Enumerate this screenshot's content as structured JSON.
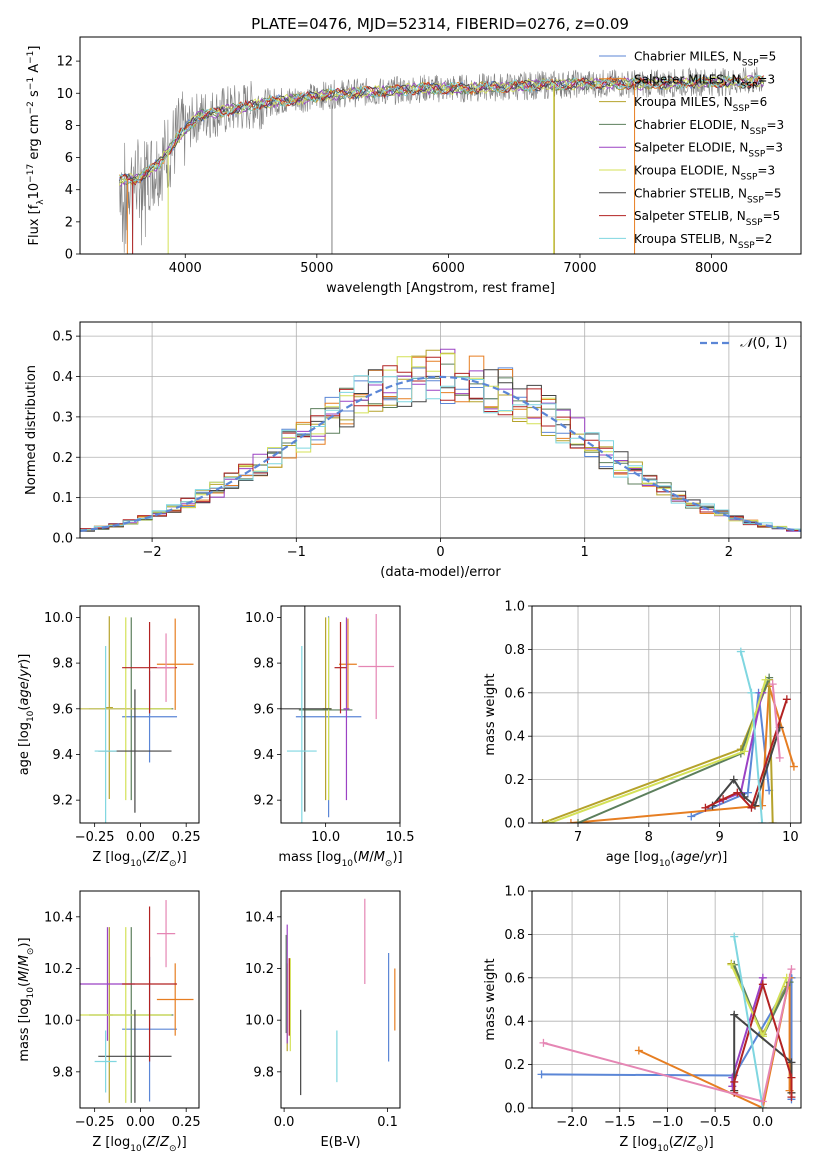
{
  "figure": {
    "title": "PLATE=0476, MJD=52314, FIBERID=0276, z=0.09"
  },
  "chart_data": [
    {
      "id": "spectrum",
      "type": "line",
      "title": "PLATE=0476, MJD=52314, FIBERID=0276, z=0.09",
      "xlabel": "wavelength [Angstrom, rest frame]",
      "ylabel": "Flux [f_λ10^-17 erg cm^-2 s^-1 A^-1]",
      "xlim": [
        3200,
        8680
      ],
      "ylim": [
        0,
        13.5
      ],
      "xticks": [
        4000,
        5000,
        6000,
        7000,
        8000
      ],
      "yticks": [
        0,
        2,
        4,
        6,
        8,
        10,
        12
      ],
      "grid": false,
      "legend_position": "top-right",
      "observed_color": "#808080",
      "continuum": {
        "x": [
          3500,
          3650,
          3800,
          3950,
          4100,
          4300,
          4600,
          4900,
          5200,
          5500,
          5800,
          6100,
          6400,
          6700,
          7000,
          7300,
          7600,
          7900,
          8200,
          8400
        ],
        "y": [
          4.6,
          4.7,
          5.6,
          7.3,
          8.6,
          8.9,
          9.4,
          9.7,
          10.0,
          10.1,
          10.3,
          10.3,
          10.4,
          10.5,
          10.6,
          10.6,
          10.6,
          10.7,
          10.7,
          10.8
        ]
      },
      "series": [
        {
          "name": "Chabrier MILES, N_SSP=5",
          "color": "#5b86d6"
        },
        {
          "name": "Salpeter MILES, N_SSP=3",
          "color": "#e67e22"
        },
        {
          "name": "Kroupa MILES, N_SSP=6",
          "color": "#b5a22b"
        },
        {
          "name": "Chabrier ELODIE, N_SSP=3",
          "color": "#5c7f5c"
        },
        {
          "name": "Salpeter ELODIE, N_SSP=3",
          "color": "#9b42c4"
        },
        {
          "name": "Kroupa ELODIE, N_SSP=3",
          "color": "#d4e157"
        },
        {
          "name": "Chabrier STELIB, N_SSP=5",
          "color": "#444444"
        },
        {
          "name": "Salpeter STELIB, N_SSP=5",
          "color": "#b22222"
        },
        {
          "name": "Kroupa STELIB, N_SSP=2",
          "color": "#7fd6e0"
        }
      ]
    },
    {
      "id": "residuals",
      "type": "bar",
      "xlabel": "(data-model)/error",
      "ylabel": "Normed distribution",
      "xlim": [
        -2.5,
        2.5
      ],
      "ylim": [
        0,
        0.535
      ],
      "xticks": [
        -2,
        -1,
        0,
        1,
        2
      ],
      "yticks": [
        0.0,
        0.1,
        0.2,
        0.3,
        0.4,
        0.5
      ],
      "grid": true,
      "legend_position": "top-right",
      "reference": {
        "name": "N(0,1)",
        "color": "#5b86d6"
      },
      "bin_width": 0.1,
      "bin_centers_from": -2.45
    },
    {
      "id": "age-vs-Z",
      "type": "scatter",
      "xlabel": "Z [log10(Z/Z⊙)]",
      "ylabel": "age [log10(age/yr)]",
      "xlim": [
        -0.33,
        0.32
      ],
      "ylim": [
        9.1,
        10.05
      ],
      "xticks": [
        -0.25,
        0.0,
        0.25
      ],
      "yticks": [
        9.2,
        9.4,
        9.6,
        9.8,
        10.0
      ],
      "points": [
        {
          "x": 0.05,
          "y": 9.565,
          "xerr": 0.15,
          "yerr": 0.2,
          "color": "#5b86d6"
        },
        {
          "x": 0.19,
          "y": 9.795,
          "xerr": 0.1,
          "yerr": 0.2,
          "color": "#e67e22"
        },
        {
          "x": -0.17,
          "y": 9.605,
          "xerr": 0.02,
          "yerr": 0.4,
          "color": "#b5a22b"
        },
        {
          "x": -0.05,
          "y": 9.6,
          "xerr": 0.23,
          "yerr": 0.4,
          "color": "#5c7f5c"
        },
        {
          "x": -0.18,
          "y": 9.6,
          "xerr": 0.15,
          "yerr": 0.0,
          "color": "#9b42c4"
        },
        {
          "x": -0.08,
          "y": 9.6,
          "xerr": 0.25,
          "yerr": 0.4,
          "color": "#d4e157"
        },
        {
          "x": -0.03,
          "y": 9.415,
          "xerr": 0.2,
          "yerr": 0.27,
          "color": "#444444"
        },
        {
          "x": 0.05,
          "y": 9.78,
          "xerr": 0.15,
          "yerr": 0.2,
          "color": "#b22222"
        },
        {
          "x": -0.19,
          "y": 9.415,
          "xerr": 0.06,
          "yerr": 0.46,
          "color": "#7fd6e0"
        },
        {
          "x": 0.14,
          "y": 9.78,
          "xerr": 0.05,
          "yerr": 0.15,
          "color": "#e586b4"
        }
      ]
    },
    {
      "id": "age-vs-mass",
      "type": "scatter",
      "xlabel": "mass [log10(M/M⊙)]",
      "ylabel": "",
      "xlim": [
        9.7,
        10.5
      ],
      "ylim": [
        9.1,
        10.05
      ],
      "xticks": [
        10.0,
        10.5
      ],
      "yticks": [
        9.2,
        9.4,
        9.6,
        9.8,
        10.0
      ],
      "points": [
        {
          "x": 10.02,
          "y": 9.565,
          "xerr": 0.22,
          "yerr": 0.44,
          "color": "#5b86d6"
        },
        {
          "x": 10.15,
          "y": 9.795,
          "xerr": 0.06,
          "yerr": 0.2,
          "color": "#e67e22"
        },
        {
          "x": 10.0,
          "y": 9.6,
          "xerr": 0.02,
          "yerr": 0.4,
          "color": "#b5a22b"
        },
        {
          "x": 10.0,
          "y": 9.595,
          "xerr": 0.18,
          "yerr": 0.0,
          "color": "#5c7f5c"
        },
        {
          "x": 10.14,
          "y": 9.6,
          "xerr": 0.02,
          "yerr": 0.4,
          "color": "#9b42c4"
        },
        {
          "x": 10.02,
          "y": 9.6,
          "xerr": 0.02,
          "yerr": 0.4,
          "color": "#d4e157"
        },
        {
          "x": 9.86,
          "y": 9.6,
          "xerr": 0.18,
          "yerr": 0.45,
          "color": "#444444"
        },
        {
          "x": 10.1,
          "y": 9.78,
          "xerr": 0.04,
          "yerr": 0.2,
          "color": "#b22222"
        },
        {
          "x": 9.84,
          "y": 9.415,
          "xerr": 0.1,
          "yerr": 0.46,
          "color": "#7fd6e0"
        },
        {
          "x": 10.34,
          "y": 9.785,
          "xerr": 0.12,
          "yerr": 0.23,
          "color": "#e586b4"
        }
      ]
    },
    {
      "id": "weights-vs-age",
      "type": "line",
      "xlabel": "age [log10(age/yr)]",
      "ylabel": "mass weight",
      "xlim": [
        6.35,
        10.15
      ],
      "ylim": [
        0.0,
        1.0
      ],
      "xticks": [
        7,
        8,
        9,
        10
      ],
      "yticks": [
        0.0,
        0.2,
        0.4,
        0.6,
        0.8,
        1.0
      ],
      "grid": true,
      "series": [
        {
          "color": "#5b86d6",
          "x": [
            8.6,
            9.4,
            9.55,
            9.7
          ],
          "y": [
            0.03,
            0.14,
            0.6,
            0.15
          ]
        },
        {
          "color": "#e67e22",
          "x": [
            6.9,
            9.6,
            9.7,
            10.05
          ],
          "y": [
            0.0,
            0.08,
            0.63,
            0.26
          ]
        },
        {
          "color": "#b5a22b",
          "x": [
            6.5,
            9.3,
            9.7,
            9.75
          ],
          "y": [
            0.0,
            0.34,
            0.66,
            0.0
          ]
        },
        {
          "color": "#5c7f5c",
          "x": [
            7.0,
            9.3,
            9.7
          ],
          "y": [
            0.0,
            0.32,
            0.67
          ]
        },
        {
          "color": "#9b42c4",
          "x": [
            9.0,
            9.3,
            9.6
          ],
          "y": [
            0.1,
            0.14,
            0.6
          ]
        },
        {
          "color": "#d4e157",
          "x": [
            6.6,
            9.35,
            9.65
          ],
          "y": [
            0.0,
            0.33,
            0.66
          ]
        },
        {
          "color": "#444444",
          "x": [
            8.9,
            9.2,
            9.35,
            9.5,
            9.85
          ],
          "y": [
            0.08,
            0.2,
            0.12,
            0.08,
            0.44
          ]
        },
        {
          "color": "#b22222",
          "x": [
            8.8,
            9.05,
            9.25,
            9.45,
            9.95
          ],
          "y": [
            0.07,
            0.11,
            0.14,
            0.07,
            0.57
          ]
        },
        {
          "color": "#7fd6e0",
          "x": [
            9.3,
            9.45,
            9.6
          ],
          "y": [
            0.79,
            0.6,
            0.0
          ]
        },
        {
          "color": "#e586b4",
          "x": [
            9.75,
            9.85
          ],
          "y": [
            0.64,
            0.3
          ]
        }
      ]
    },
    {
      "id": "mass-vs-Z",
      "type": "scatter",
      "xlabel": "Z [log10(Z/Z⊙)]",
      "ylabel": "mass [log10(M/M⊙)]",
      "xlim": [
        -0.33,
        0.32
      ],
      "ylim": [
        9.66,
        10.5
      ],
      "xticks": [
        -0.25,
        0.0,
        0.25
      ],
      "yticks": [
        9.8,
        10.0,
        10.2,
        10.4
      ],
      "points": [
        {
          "x": 0.05,
          "y": 9.965,
          "xerr": 0.15,
          "yerr": 0.28,
          "color": "#5b86d6"
        },
        {
          "x": 0.19,
          "y": 10.08,
          "xerr": 0.1,
          "yerr": 0.14,
          "color": "#e67e22"
        },
        {
          "x": -0.17,
          "y": 10.02,
          "xerr": 0.02,
          "yerr": 0.34,
          "color": "#b5a22b"
        },
        {
          "x": -0.05,
          "y": 10.02,
          "xerr": 0.23,
          "yerr": 0.34,
          "color": "#5c7f5c"
        },
        {
          "x": -0.18,
          "y": 10.14,
          "xerr": 0.15,
          "yerr": 0.22,
          "color": "#9b42c4"
        },
        {
          "x": -0.08,
          "y": 10.02,
          "xerr": 0.25,
          "yerr": 0.34,
          "color": "#d4e157"
        },
        {
          "x": -0.03,
          "y": 9.86,
          "xerr": 0.2,
          "yerr": 0.18,
          "color": "#444444"
        },
        {
          "x": 0.05,
          "y": 10.14,
          "xerr": 0.15,
          "yerr": 0.3,
          "color": "#b22222"
        },
        {
          "x": -0.19,
          "y": 9.84,
          "xerr": 0.06,
          "yerr": 0.12,
          "color": "#7fd6e0"
        },
        {
          "x": 0.14,
          "y": 10.335,
          "xerr": 0.05,
          "yerr": 0.13,
          "color": "#e586b4"
        }
      ]
    },
    {
      "id": "mass-vs-EBV",
      "type": "scatter",
      "xlabel": "E(B-V)",
      "ylabel": "",
      "xlim": [
        -0.003,
        0.112
      ],
      "ylim": [
        9.66,
        10.5
      ],
      "xticks": [
        0.0,
        0.1
      ],
      "yticks": [
        9.8,
        10.0,
        10.2,
        10.4
      ],
      "segments": [
        {
          "x": 0.101,
          "y0": 9.84,
          "y1": 10.26,
          "color": "#5b86d6"
        },
        {
          "x": 0.107,
          "y0": 9.96,
          "y1": 10.2,
          "color": "#e67e22"
        },
        {
          "x": 0.003,
          "y0": 9.88,
          "y1": 10.22,
          "color": "#b5a22b"
        },
        {
          "x": 0.002,
          "y0": 9.95,
          "y1": 10.33,
          "color": "#5c7f5c"
        },
        {
          "x": 0.003,
          "y0": 9.91,
          "y1": 10.37,
          "color": "#9b42c4"
        },
        {
          "x": 0.006,
          "y0": 9.88,
          "y1": 10.24,
          "color": "#d4e157"
        },
        {
          "x": 0.016,
          "y0": 9.71,
          "y1": 10.04,
          "color": "#444444"
        },
        {
          "x": 0.005,
          "y0": 9.94,
          "y1": 10.24,
          "color": "#b22222"
        },
        {
          "x": 0.051,
          "y0": 9.76,
          "y1": 9.96,
          "color": "#7fd6e0"
        },
        {
          "x": 0.078,
          "y0": 10.14,
          "y1": 10.47,
          "color": "#e586b4"
        }
      ]
    },
    {
      "id": "weights-vs-Z",
      "type": "line",
      "xlabel": "Z [log10(Z/Z⊙)]",
      "ylabel": "mass weight",
      "xlim": [
        -2.42,
        0.4
      ],
      "ylim": [
        0.0,
        1.0
      ],
      "xticks": [
        -2.0,
        -1.5,
        -1.0,
        -0.5,
        0.0
      ],
      "yticks": [
        0.0,
        0.2,
        0.4,
        0.6,
        0.8,
        1.0
      ],
      "grid": true,
      "series": [
        {
          "color": "#5b86d6",
          "x": [
            -2.32,
            -0.3,
            0.3,
            0.3
          ],
          "y": [
            0.155,
            0.15,
            0.6,
            0.04
          ]
        },
        {
          "color": "#e67e22",
          "x": [
            -1.3,
            0.0,
            0.28,
            0.28
          ],
          "y": [
            0.265,
            0.0,
            0.6,
            0.08
          ]
        },
        {
          "color": "#b5a22b",
          "x": [
            -0.33,
            0.0,
            0.25
          ],
          "y": [
            0.665,
            0.34,
            0.56
          ]
        },
        {
          "color": "#5c7f5c",
          "x": [
            -0.3,
            0.0,
            0.28
          ],
          "y": [
            0.66,
            0.33,
            0.58
          ]
        },
        {
          "color": "#9b42c4",
          "x": [
            -0.32,
            -0.32,
            0.0
          ],
          "y": [
            0.1,
            0.14,
            0.6
          ]
        },
        {
          "color": "#d4e157",
          "x": [
            -0.33,
            0.0,
            0.25
          ],
          "y": [
            0.66,
            0.33,
            0.6
          ]
        },
        {
          "color": "#444444",
          "x": [
            -0.3,
            -0.3,
            0.3,
            0.3
          ],
          "y": [
            0.08,
            0.43,
            0.21,
            0.07
          ]
        },
        {
          "color": "#b22222",
          "x": [
            -0.3,
            -0.3,
            0.0,
            0.3,
            0.3
          ],
          "y": [
            0.07,
            0.12,
            0.57,
            0.14,
            0.05
          ]
        },
        {
          "color": "#7fd6e0",
          "x": [
            -0.3,
            0.0
          ],
          "y": [
            0.79,
            0.0
          ]
        },
        {
          "color": "#e586b4",
          "x": [
            -2.3,
            0.0,
            0.3
          ],
          "y": [
            0.3,
            0.03,
            0.64
          ]
        }
      ]
    }
  ]
}
